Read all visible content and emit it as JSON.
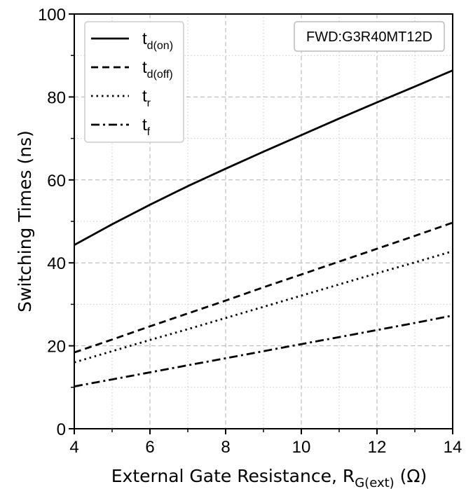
{
  "chart_data": {
    "type": "line",
    "xlabel": "External Gate Resistance, R",
    "xlabel_sub": "G(ext)",
    "xlabel_unit": " (Ω)",
    "ylabel": "Switching Times (ns)",
    "xlim": [
      4,
      14
    ],
    "ylim": [
      0,
      100
    ],
    "xticks": [
      "4",
      "6",
      "8",
      "10",
      "12",
      "14"
    ],
    "yticks": [
      "0",
      "20",
      "40",
      "60",
      "80",
      "100"
    ],
    "grid": true,
    "legend_position": "top-left",
    "annotation": "FWD:G3R40MT12D",
    "series": [
      {
        "name": "t",
        "name_sub": "d(on)",
        "style": "solid",
        "x": [
          4,
          5,
          6,
          7,
          8,
          9,
          10,
          11,
          12,
          13,
          14
        ],
        "y": [
          44.3,
          49.3,
          54.0,
          58.5,
          62.7,
          66.8,
          70.8,
          74.8,
          78.7,
          82.5,
          86.4
        ]
      },
      {
        "name": "t",
        "name_sub": "d(off)",
        "style": "dashed",
        "x": [
          4,
          5,
          6,
          7,
          8,
          9,
          10,
          11,
          12,
          13,
          14
        ],
        "y": [
          18.4,
          21.5,
          24.7,
          27.8,
          30.9,
          34.1,
          37.2,
          40.3,
          43.4,
          46.5,
          49.7
        ]
      },
      {
        "name": "t",
        "name_sub": "r",
        "style": "dotted",
        "x": [
          4,
          5,
          6,
          7,
          8,
          9,
          10,
          11,
          12,
          13,
          14
        ],
        "y": [
          16.0,
          18.7,
          21.4,
          24.0,
          26.7,
          29.4,
          32.1,
          34.8,
          37.5,
          40.1,
          42.8
        ]
      },
      {
        "name": "t",
        "name_sub": "f",
        "style": "dashdot",
        "x": [
          4,
          5,
          6,
          7,
          8,
          9,
          10,
          11,
          12,
          13,
          14
        ],
        "y": [
          10.2,
          11.9,
          13.6,
          15.3,
          17.0,
          18.7,
          20.4,
          22.1,
          23.8,
          25.5,
          27.3
        ]
      }
    ]
  }
}
